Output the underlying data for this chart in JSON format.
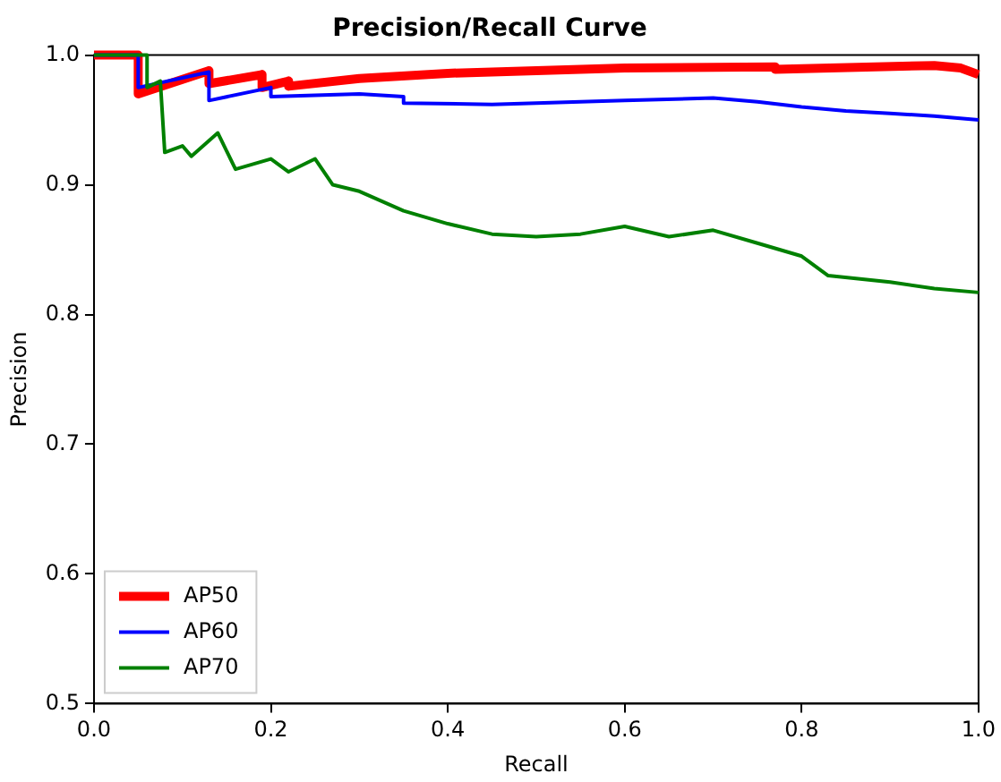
{
  "chart_data": {
    "type": "line",
    "title": "Precision/Recall Curve",
    "xlabel": "Recall",
    "ylabel": "Precision",
    "xlim": [
      0,
      1
    ],
    "ylim": [
      0.5,
      1
    ],
    "xticks": [
      {
        "value": 0,
        "label": "0.0"
      },
      0.2,
      0.4,
      0.6,
      0.8,
      {
        "value": 1,
        "label": "1.0"
      }
    ],
    "yticks": [
      0.5,
      0.6,
      0.7,
      0.8,
      0.9,
      {
        "value": 1,
        "label": "1.0"
      }
    ],
    "grid": false,
    "legend": "bottom left",
    "marker": "none",
    "line_style": "solid",
    "series": [
      {
        "name": "AP50",
        "color": "#ff0000",
        "x": [
          0,
          0.05,
          0.05,
          0.13,
          0.13,
          0.19,
          0.19,
          0.22,
          0.22,
          0.3,
          0.4,
          0.5,
          0.6,
          0.77,
          0.77,
          0.95,
          0.98,
          1.0
        ],
        "values": [
          1.0,
          1.0,
          0.97,
          0.988,
          0.978,
          0.985,
          0.975,
          0.98,
          0.976,
          0.982,
          0.986,
          0.988,
          0.99,
          0.991,
          0.989,
          0.992,
          0.99,
          0.985
        ]
      },
      {
        "name": "AP60",
        "color": "#0000ff",
        "x": [
          0,
          0.05,
          0.05,
          0.13,
          0.13,
          0.2,
          0.2,
          0.3,
          0.35,
          0.35,
          0.45,
          0.5,
          0.6,
          0.7,
          0.75,
          0.8,
          0.85,
          0.9,
          0.95,
          1.0
        ],
        "values": [
          1.0,
          1.0,
          0.975,
          0.987,
          0.965,
          0.975,
          0.968,
          0.97,
          0.968,
          0.963,
          0.962,
          0.963,
          0.965,
          0.967,
          0.964,
          0.96,
          0.957,
          0.955,
          0.953,
          0.95
        ]
      },
      {
        "name": "AP70",
        "color": "#008000",
        "x": [
          0,
          0.06,
          0.06,
          0.075,
          0.08,
          0.1,
          0.11,
          0.14,
          0.16,
          0.2,
          0.22,
          0.25,
          0.27,
          0.3,
          0.35,
          0.4,
          0.45,
          0.5,
          0.55,
          0.6,
          0.65,
          0.7,
          0.75,
          0.8,
          0.83,
          0.9,
          0.95,
          1.0
        ],
        "values": [
          1.0,
          1.0,
          0.975,
          0.98,
          0.925,
          0.93,
          0.922,
          0.94,
          0.912,
          0.92,
          0.91,
          0.92,
          0.9,
          0.895,
          0.88,
          0.87,
          0.862,
          0.86,
          0.862,
          0.868,
          0.86,
          0.865,
          0.855,
          0.845,
          0.83,
          0.825,
          0.82,
          0.817
        ]
      }
    ]
  }
}
